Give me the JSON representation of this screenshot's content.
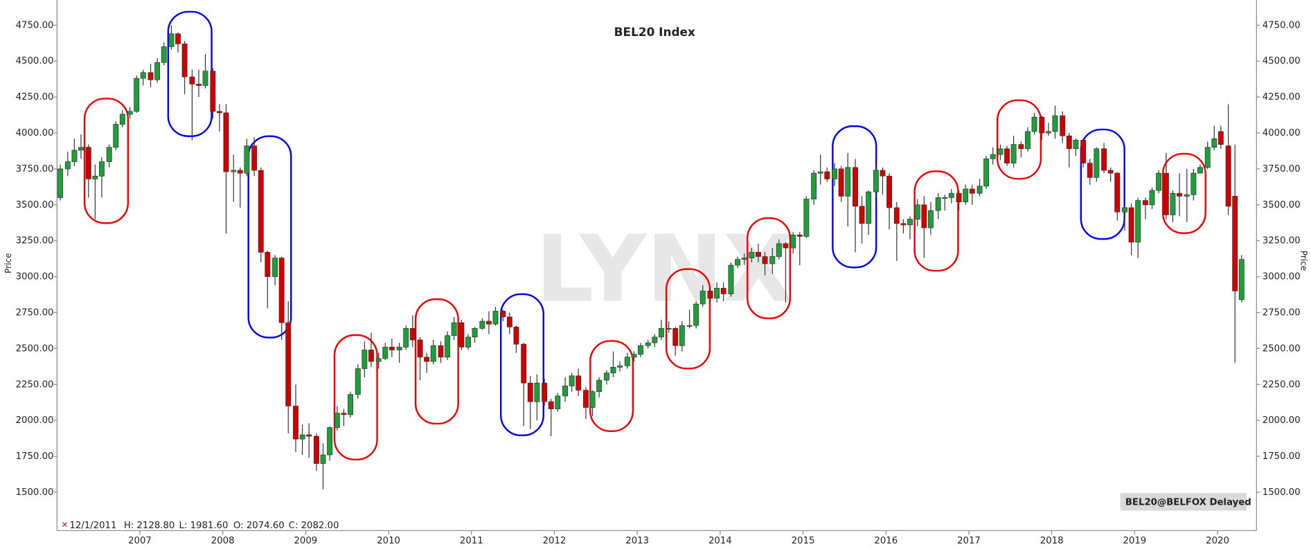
{
  "chart_data": {
    "type": "candlestick",
    "title": "BEL20 Index",
    "watermark": "LYNX",
    "ylabel": "Price",
    "y2label": "Price",
    "badge": "BEL20@BELFOX Delayed",
    "info": {
      "marker": "×",
      "date": "12/1/2011",
      "high": "H: 2128.80",
      "low": "L: 1981.60",
      "open": "O: 2074.60",
      "close": "C: 2082.00"
    },
    "up_color": "#1f9e3c",
    "down_color": "#d10000",
    "grid": false,
    "xlim": [
      2006.0,
      2020.47
    ],
    "xticks": [
      2007,
      2008,
      2009,
      2010,
      2011,
      2012,
      2013,
      2014,
      2015,
      2016,
      2017,
      2018,
      2019,
      2020
    ],
    "ylim": [
      1233,
      4925
    ],
    "yticks": [
      {
        "value": 1500,
        "label": "1500.00"
      },
      {
        "value": 1750,
        "label": "1750.00"
      },
      {
        "value": 2000,
        "label": "2000.00"
      },
      {
        "value": 2250,
        "label": "2250.00"
      },
      {
        "value": 2500,
        "label": "2500.00"
      },
      {
        "value": 2750,
        "label": "2750.00"
      },
      {
        "value": 3000,
        "label": "3000.00"
      },
      {
        "value": 3250,
        "label": "3250.00"
      },
      {
        "value": 3500,
        "label": "3500.00"
      },
      {
        "value": 3750,
        "label": "3750.00"
      },
      {
        "value": 4000,
        "label": "4000.00"
      },
      {
        "value": 4250,
        "label": "4250.00"
      },
      {
        "value": 4500,
        "label": "4500.00"
      },
      {
        "value": 4750,
        "label": "4750.00"
      }
    ],
    "x": [
      2006.04,
      2006.13,
      2006.21,
      2006.29,
      2006.38,
      2006.46,
      2006.54,
      2006.63,
      2006.71,
      2006.79,
      2006.88,
      2006.96,
      2007.04,
      2007.13,
      2007.21,
      2007.29,
      2007.38,
      2007.46,
      2007.54,
      2007.63,
      2007.71,
      2007.79,
      2007.88,
      2007.96,
      2008.04,
      2008.13,
      2008.21,
      2008.29,
      2008.38,
      2008.46,
      2008.54,
      2008.63,
      2008.71,
      2008.79,
      2008.88,
      2008.96,
      2009.04,
      2009.13,
      2009.21,
      2009.29,
      2009.38,
      2009.46,
      2009.54,
      2009.63,
      2009.71,
      2009.79,
      2009.88,
      2009.96,
      2010.04,
      2010.13,
      2010.21,
      2010.29,
      2010.38,
      2010.46,
      2010.54,
      2010.63,
      2010.71,
      2010.79,
      2010.88,
      2010.96,
      2011.04,
      2011.13,
      2011.21,
      2011.29,
      2011.38,
      2011.46,
      2011.54,
      2011.63,
      2011.71,
      2011.79,
      2011.88,
      2011.96,
      2012.04,
      2012.13,
      2012.21,
      2012.29,
      2012.38,
      2012.46,
      2012.54,
      2012.63,
      2012.71,
      2012.79,
      2012.88,
      2012.96,
      2013.04,
      2013.13,
      2013.21,
      2013.29,
      2013.38,
      2013.46,
      2013.54,
      2013.63,
      2013.71,
      2013.79,
      2013.88,
      2013.96,
      2014.04,
      2014.13,
      2014.21,
      2014.29,
      2014.38,
      2014.46,
      2014.54,
      2014.63,
      2014.71,
      2014.79,
      2014.88,
      2014.96,
      2015.04,
      2015.13,
      2015.21,
      2015.29,
      2015.38,
      2015.46,
      2015.54,
      2015.63,
      2015.71,
      2015.79,
      2015.88,
      2015.96,
      2016.04,
      2016.13,
      2016.21,
      2016.29,
      2016.38,
      2016.46,
      2016.54,
      2016.63,
      2016.71,
      2016.79,
      2016.88,
      2016.96,
      2017.04,
      2017.13,
      2017.21,
      2017.29,
      2017.38,
      2017.46,
      2017.54,
      2017.63,
      2017.71,
      2017.79,
      2017.88,
      2017.96,
      2018.04,
      2018.13,
      2018.21,
      2018.29,
      2018.38,
      2018.46,
      2018.54,
      2018.63,
      2018.71,
      2018.79,
      2018.88,
      2018.96,
      2019.04,
      2019.13,
      2019.21,
      2019.29,
      2019.38,
      2019.46,
      2019.54,
      2019.63,
      2019.71,
      2019.79,
      2019.88,
      2019.96,
      2020.04,
      2020.13,
      2020.21,
      2020.29
    ],
    "open": [
      3550,
      3750,
      3800,
      3880,
      3900,
      3680,
      3700,
      3800,
      3900,
      4060,
      4130,
      4150,
      4380,
      4420,
      4370,
      4490,
      4600,
      4690,
      4620,
      4390,
      4340,
      4330,
      4430,
      4150,
      4140,
      3730,
      3740,
      3720,
      3910,
      3740,
      3170,
      3000,
      3130,
      2680,
      2100,
      1870,
      1900,
      1890,
      1700,
      1760,
      1950,
      2050,
      2040,
      2180,
      2360,
      2490,
      2410,
      2430,
      2510,
      2490,
      2510,
      2640,
      2560,
      2440,
      2410,
      2520,
      2440,
      2590,
      2680,
      2510,
      2580,
      2640,
      2690,
      2670,
      2760,
      2720,
      2650,
      2530,
      2260,
      2130,
      2260,
      2130,
      2080,
      2170,
      2240,
      2310,
      2210,
      2090,
      2200,
      2280,
      2330,
      2370,
      2380,
      2440,
      2460,
      2520,
      2540,
      2580,
      2640,
      2640,
      2520,
      2660,
      2660,
      2810,
      2900,
      2850,
      2920,
      2880,
      3080,
      3120,
      3130,
      3170,
      3140,
      3090,
      3140,
      3230,
      3200,
      3290,
      3280,
      3540,
      3720,
      3730,
      3680,
      3750,
      3560,
      3760,
      3490,
      3370,
      3590,
      3740,
      3700,
      3480,
      3370,
      3360,
      3400,
      3500,
      3340,
      3460,
      3550,
      3550,
      3580,
      3520,
      3610,
      3580,
      3630,
      3820,
      3850,
      3890,
      3790,
      3920,
      3890,
      4010,
      4110,
      4000,
      4010,
      4120,
      3980,
      3890,
      3950,
      3790,
      3690,
      3890,
      3740,
      3720,
      3450,
      3480,
      3240,
      3530,
      3500,
      3600,
      3720,
      3430,
      3580,
      3560,
      3570,
      3720,
      3760,
      3900,
      4010,
      3910,
      3560,
      2840
    ],
    "high": [
      3780,
      3870,
      3960,
      3990,
      3920,
      3780,
      3830,
      3920,
      4080,
      4160,
      4180,
      4400,
      4440,
      4480,
      4520,
      4630,
      4750,
      4700,
      4640,
      4440,
      4440,
      4550,
      4450,
      4200,
      4200,
      3850,
      3760,
      3960,
      3970,
      3760,
      3180,
      3150,
      3140,
      2830,
      2250,
      1970,
      1980,
      1910,
      1840,
      1960,
      2100,
      2080,
      2200,
      2390,
      2550,
      2610,
      2470,
      2540,
      2570,
      2540,
      2660,
      2730,
      2580,
      2470,
      2560,
      2550,
      2620,
      2720,
      2700,
      2600,
      2650,
      2710,
      2760,
      2790,
      2770,
      2750,
      2660,
      2540,
      2310,
      2320,
      2290,
      2150,
      2190,
      2300,
      2330,
      2360,
      2230,
      2210,
      2300,
      2350,
      2480,
      2410,
      2470,
      2480,
      2540,
      2560,
      2600,
      2700,
      2690,
      2650,
      2690,
      2770,
      2830,
      2940,
      2930,
      2960,
      2960,
      3100,
      3140,
      3160,
      3200,
      3230,
      3170,
      3200,
      3260,
      3240,
      3310,
      3310,
      3560,
      3740,
      3850,
      3760,
      3790,
      3770,
      3860,
      3820,
      3560,
      3600,
      3780,
      3760,
      3720,
      3520,
      3400,
      3420,
      3540,
      3560,
      3520,
      3580,
      3570,
      3610,
      3600,
      3640,
      3640,
      3680,
      3840,
      3900,
      3920,
      3910,
      3980,
      3940,
      4040,
      4140,
      4120,
      4070,
      4190,
      4150,
      4000,
      3960,
      3960,
      3820,
      3900,
      3930,
      3760,
      3730,
      3500,
      3510,
      3550,
      3550,
      3620,
      3740,
      3860,
      3600,
      3720,
      3750,
      3750,
      3780,
      3940,
      4050,
      4050,
      4200,
      3920,
      3150
    ],
    "low": [
      3530,
      3700,
      3770,
      3820,
      3550,
      3400,
      3550,
      3760,
      3880,
      4040,
      4100,
      4140,
      4330,
      4320,
      4350,
      4470,
      4580,
      4560,
      4270,
      3950,
      4250,
      4310,
      4100,
      4010,
      3300,
      3520,
      3480,
      3700,
      3700,
      3100,
      2780,
      2940,
      2560,
      1910,
      1780,
      1760,
      1740,
      1650,
      1520,
      1720,
      1930,
      1960,
      2020,
      2150,
      2300,
      2370,
      2360,
      2420,
      2440,
      2400,
      2490,
      2510,
      2280,
      2330,
      2390,
      2400,
      2420,
      2560,
      2490,
      2490,
      2540,
      2630,
      2600,
      2660,
      2690,
      2600,
      2470,
      1960,
      1940,
      2000,
      2100,
      1890,
      2060,
      2130,
      2200,
      2170,
      2010,
      2030,
      2160,
      2250,
      2300,
      2340,
      2360,
      2410,
      2440,
      2500,
      2510,
      2560,
      2610,
      2450,
      2480,
      2640,
      2640,
      2790,
      2810,
      2820,
      2830,
      2860,
      3060,
      3080,
      3100,
      3100,
      3010,
      3020,
      3120,
      2820,
      3160,
      3080,
      3270,
      3500,
      3640,
      3660,
      3630,
      3520,
      3350,
      3170,
      3230,
      3290,
      3550,
      3570,
      3330,
      3110,
      3300,
      3260,
      3350,
      3130,
      3290,
      3400,
      3460,
      3510,
      3460,
      3500,
      3500,
      3560,
      3610,
      3780,
      3810,
      3770,
      3760,
      3830,
      3870,
      3990,
      3950,
      3980,
      3960,
      3930,
      3760,
      3840,
      3760,
      3640,
      3660,
      3720,
      3660,
      3390,
      3320,
      3150,
      3130,
      3400,
      3470,
      3580,
      3400,
      3380,
      3420,
      3380,
      3530,
      3720,
      3750,
      3880,
      3890,
      3430,
      2400,
      2820
    ],
    "close": [
      3750,
      3800,
      3880,
      3900,
      3680,
      3700,
      3800,
      3900,
      4060,
      4130,
      4150,
      4380,
      4420,
      4370,
      4490,
      4600,
      4690,
      4620,
      4390,
      4340,
      4330,
      4430,
      4150,
      4140,
      3730,
      3740,
      3720,
      3910,
      3740,
      3170,
      3000,
      3130,
      2680,
      2100,
      1870,
      1900,
      1890,
      1700,
      1760,
      1950,
      2050,
      2040,
      2180,
      2360,
      2490,
      2410,
      2430,
      2510,
      2490,
      2510,
      2640,
      2560,
      2440,
      2410,
      2520,
      2440,
      2590,
      2680,
      2510,
      2580,
      2640,
      2690,
      2670,
      2760,
      2720,
      2650,
      2530,
      2260,
      2130,
      2260,
      2130,
      2080,
      2170,
      2240,
      2310,
      2210,
      2090,
      2200,
      2280,
      2330,
      2370,
      2380,
      2440,
      2460,
      2520,
      2540,
      2580,
      2640,
      2640,
      2520,
      2660,
      2660,
      2810,
      2900,
      2850,
      2920,
      2880,
      3080,
      3120,
      3130,
      3170,
      3140,
      3090,
      3140,
      3230,
      3200,
      3290,
      3280,
      3540,
      3720,
      3730,
      3680,
      3750,
      3560,
      3760,
      3490,
      3370,
      3590,
      3740,
      3700,
      3480,
      3370,
      3360,
      3400,
      3500,
      3340,
      3460,
      3550,
      3550,
      3580,
      3520,
      3610,
      3580,
      3630,
      3820,
      3850,
      3890,
      3790,
      3920,
      3890,
      4010,
      4110,
      4000,
      4010,
      4120,
      3980,
      3890,
      3950,
      3790,
      3690,
      3890,
      3740,
      3720,
      3450,
      3480,
      3240,
      3530,
      3500,
      3600,
      3720,
      3430,
      3580,
      3560,
      3570,
      3720,
      3760,
      3900,
      3960,
      3920,
      3490,
      2900,
      3120
    ]
  }
}
